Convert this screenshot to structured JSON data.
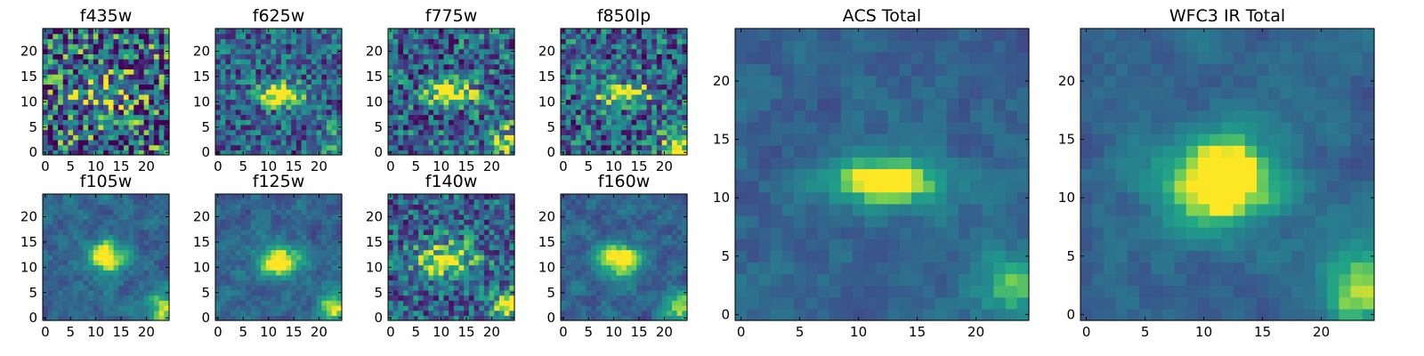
{
  "chart_data": [
    {
      "type": "heatmap",
      "title": "f435w",
      "x_ticks": [
        0,
        5,
        10,
        15,
        20
      ],
      "y_ticks": [
        0,
        5,
        10,
        15,
        20
      ],
      "xlim": [
        0,
        24
      ],
      "ylim": [
        0,
        24
      ],
      "colormap": "viridis",
      "grid": false,
      "center": [
        12,
        11.5
      ],
      "spread": [
        3.5,
        2.0
      ],
      "peak": 0.5,
      "noise": 0.55,
      "corner_blob": 0.0
    },
    {
      "type": "heatmap",
      "title": "f625w",
      "x_ticks": [
        0,
        5,
        10,
        15,
        20
      ],
      "y_ticks": [
        0,
        5,
        10,
        15,
        20
      ],
      "xlim": [
        0,
        24
      ],
      "ylim": [
        0,
        24
      ],
      "colormap": "viridis",
      "grid": false,
      "center": [
        12,
        11.5
      ],
      "spread": [
        3.0,
        1.5
      ],
      "peak": 0.8,
      "noise": 0.35,
      "corner_blob": 0.2
    },
    {
      "type": "heatmap",
      "title": "f775w",
      "x_ticks": [
        0,
        5,
        10,
        15,
        20
      ],
      "y_ticks": [
        0,
        5,
        10,
        15,
        20
      ],
      "xlim": [
        0,
        24
      ],
      "ylim": [
        0,
        24
      ],
      "colormap": "viridis",
      "grid": false,
      "center": [
        12,
        11.5
      ],
      "spread": [
        3.0,
        1.5
      ],
      "peak": 0.8,
      "noise": 0.4,
      "corner_blob": 0.4
    },
    {
      "type": "heatmap",
      "title": "f850lp",
      "x_ticks": [
        0,
        5,
        10,
        15,
        20
      ],
      "y_ticks": [
        0,
        5,
        10,
        15,
        20
      ],
      "xlim": [
        0,
        24
      ],
      "ylim": [
        0,
        24
      ],
      "colormap": "viridis",
      "grid": false,
      "center": [
        12,
        11.5
      ],
      "spread": [
        3.5,
        1.5
      ],
      "peak": 0.7,
      "noise": 0.4,
      "corner_blob": 0.55
    },
    {
      "type": "heatmap",
      "title": "f105w",
      "x_ticks": [
        0,
        5,
        10,
        15,
        20
      ],
      "y_ticks": [
        0,
        5,
        10,
        15,
        20
      ],
      "xlim": [
        0,
        24
      ],
      "ylim": [
        0,
        24
      ],
      "colormap": "viridis",
      "grid": false,
      "center": [
        12,
        12
      ],
      "spread": [
        2.8,
        2.4
      ],
      "peak": 0.75,
      "noise": 0.3,
      "corner_blob": 0.5
    },
    {
      "type": "heatmap",
      "title": "f125w",
      "x_ticks": [
        0,
        5,
        10,
        15,
        20
      ],
      "y_ticks": [
        0,
        5,
        10,
        15,
        20
      ],
      "xlim": [
        0,
        24
      ],
      "ylim": [
        0,
        24
      ],
      "colormap": "viridis",
      "grid": false,
      "center": [
        12,
        11.5
      ],
      "spread": [
        3.0,
        2.4
      ],
      "peak": 0.7,
      "noise": 0.3,
      "corner_blob": 0.6
    },
    {
      "type": "heatmap",
      "title": "f140w",
      "x_ticks": [
        0,
        5,
        10,
        15,
        20
      ],
      "y_ticks": [
        0,
        5,
        10,
        15,
        20
      ],
      "xlim": [
        0,
        24
      ],
      "ylim": [
        0,
        24
      ],
      "colormap": "viridis",
      "grid": false,
      "center": [
        11,
        11.5
      ],
      "spread": [
        4.0,
        2.5
      ],
      "peak": 0.6,
      "noise": 0.35,
      "corner_blob": 0.55
    },
    {
      "type": "heatmap",
      "title": "f160w",
      "x_ticks": [
        0,
        5,
        10,
        15,
        20
      ],
      "y_ticks": [
        0,
        5,
        10,
        15,
        20
      ],
      "xlim": [
        0,
        24
      ],
      "ylim": [
        0,
        24
      ],
      "colormap": "viridis",
      "grid": false,
      "center": [
        11,
        11.5
      ],
      "spread": [
        3.2,
        2.4
      ],
      "peak": 0.7,
      "noise": 0.3,
      "corner_blob": 0.5
    },
    {
      "type": "heatmap",
      "title": "ACS Total",
      "x_ticks": [
        0,
        5,
        10,
        15,
        20
      ],
      "y_ticks": [
        0,
        5,
        10,
        15,
        20
      ],
      "xlim": [
        0,
        24
      ],
      "ylim": [
        0,
        24
      ],
      "colormap": "viridis",
      "grid": false,
      "center": [
        12.5,
        11.5
      ],
      "spread": [
        3.2,
        1.4
      ],
      "peak": 0.8,
      "noise": 0.22,
      "corner_blob": 0.35
    },
    {
      "type": "heatmap",
      "title": "WFC3 IR Total",
      "x_ticks": [
        0,
        5,
        10,
        15,
        20
      ],
      "y_ticks": [
        0,
        5,
        10,
        15,
        20
      ],
      "xlim": [
        0,
        24
      ],
      "ylim": [
        0,
        24
      ],
      "colormap": "viridis",
      "grid": false,
      "center": [
        11.5,
        11.5
      ],
      "spread": [
        3.5,
        2.8
      ],
      "peak": 0.85,
      "noise": 0.18,
      "corner_blob": 0.55
    }
  ]
}
